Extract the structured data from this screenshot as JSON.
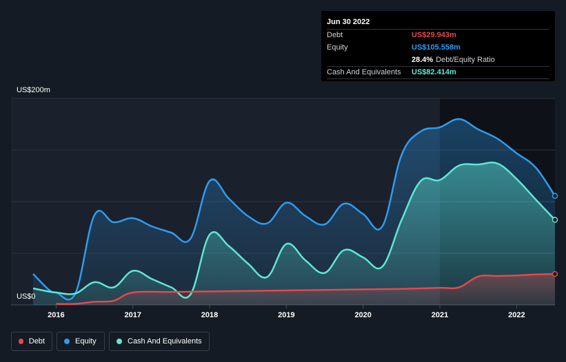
{
  "tooltip": {
    "date": "Jun 30 2022",
    "rows": [
      {
        "label": "Debt",
        "value": "US$29.943m",
        "color": "#e5484d"
      },
      {
        "label": "Equity",
        "value": "US$105.558m",
        "color": "#2e9cf0"
      },
      {
        "label": "",
        "value": "28.4%",
        "extra": "Debt/Equity Ratio",
        "color": "#ffffff"
      },
      {
        "label": "Cash And Equivalents",
        "value": "US$82.414m",
        "color": "#5ee8d4"
      }
    ]
  },
  "legend": {
    "debt": "Debt",
    "equity": "Equity",
    "cash": "Cash And Equivalents"
  },
  "colors": {
    "debt": "#e5484d",
    "equity": "#2e9cf0",
    "cash": "#5ee8d4",
    "background": "#151b24"
  },
  "chart_data": {
    "type": "area",
    "title": "",
    "ylabel_top": "US$200m",
    "ylabel_bottom": "US$0",
    "ylim": [
      0,
      200
    ],
    "xlim": [
      2015.7,
      2022.5
    ],
    "x_ticks": [
      "2016",
      "2017",
      "2018",
      "2019",
      "2020",
      "2021",
      "2022"
    ],
    "series": [
      {
        "name": "Equity",
        "points": [
          [
            2015.7,
            30
          ],
          [
            2015.9,
            15
          ],
          [
            2016.0,
            12
          ],
          [
            2016.25,
            11
          ],
          [
            2016.5,
            87
          ],
          [
            2016.75,
            80
          ],
          [
            2017.0,
            84
          ],
          [
            2017.25,
            76
          ],
          [
            2017.5,
            70
          ],
          [
            2017.75,
            64
          ],
          [
            2018.0,
            120
          ],
          [
            2018.25,
            103
          ],
          [
            2018.5,
            86
          ],
          [
            2018.75,
            79
          ],
          [
            2019.0,
            99
          ],
          [
            2019.25,
            86
          ],
          [
            2019.5,
            78
          ],
          [
            2019.75,
            98
          ],
          [
            2020.0,
            88
          ],
          [
            2020.25,
            76
          ],
          [
            2020.5,
            145
          ],
          [
            2020.75,
            168
          ],
          [
            2021.0,
            172
          ],
          [
            2021.25,
            180
          ],
          [
            2021.5,
            170
          ],
          [
            2021.75,
            161
          ],
          [
            2022.0,
            147
          ],
          [
            2022.25,
            133
          ],
          [
            2022.5,
            105.558
          ]
        ]
      },
      {
        "name": "Cash And Equivalents",
        "points": [
          [
            2015.7,
            16
          ],
          [
            2015.9,
            13
          ],
          [
            2016.0,
            12
          ],
          [
            2016.25,
            11
          ],
          [
            2016.5,
            22
          ],
          [
            2016.75,
            17
          ],
          [
            2017.0,
            33
          ],
          [
            2017.25,
            25
          ],
          [
            2017.5,
            17
          ],
          [
            2017.75,
            10
          ],
          [
            2018.0,
            68
          ],
          [
            2018.25,
            57
          ],
          [
            2018.5,
            40
          ],
          [
            2018.75,
            27
          ],
          [
            2019.0,
            59
          ],
          [
            2019.25,
            43
          ],
          [
            2019.5,
            31
          ],
          [
            2019.75,
            53
          ],
          [
            2020.0,
            46
          ],
          [
            2020.25,
            37
          ],
          [
            2020.5,
            82
          ],
          [
            2020.75,
            120
          ],
          [
            2021.0,
            121
          ],
          [
            2021.25,
            135
          ],
          [
            2021.5,
            136
          ],
          [
            2021.75,
            137
          ],
          [
            2022.0,
            122
          ],
          [
            2022.25,
            102
          ],
          [
            2022.5,
            82.414
          ]
        ]
      },
      {
        "name": "Debt",
        "points": [
          [
            2016.0,
            1
          ],
          [
            2016.25,
            1
          ],
          [
            2016.5,
            3
          ],
          [
            2016.75,
            4
          ],
          [
            2017.0,
            12
          ],
          [
            2017.5,
            12.5
          ],
          [
            2018.0,
            13
          ],
          [
            2018.5,
            13.5
          ],
          [
            2019.0,
            14
          ],
          [
            2019.5,
            14.5
          ],
          [
            2020.0,
            15
          ],
          [
            2020.5,
            15.5
          ],
          [
            2021.0,
            16.5
          ],
          [
            2021.25,
            17
          ],
          [
            2021.5,
            27.5
          ],
          [
            2021.75,
            28
          ],
          [
            2022.0,
            28.5
          ],
          [
            2022.25,
            29.5
          ],
          [
            2022.5,
            29.943
          ]
        ]
      }
    ]
  }
}
